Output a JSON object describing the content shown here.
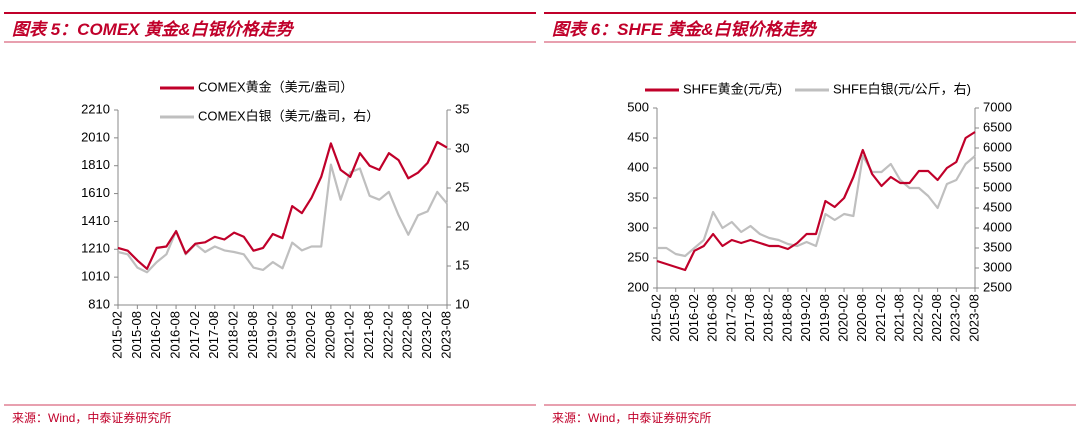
{
  "chart_data": [
    {
      "type": "line",
      "title": "图表 5：COMEX 黄金&白银价格走势",
      "source": "来源：Wind，中泰证券研究所",
      "legend": "top",
      "x": [
        "2015-02",
        null,
        "2015-08",
        null,
        "2016-02",
        null,
        "2016-08",
        null,
        "2017-02",
        null,
        "2017-08",
        null,
        "2018-02",
        null,
        "2018-08",
        null,
        "2019-02",
        null,
        "2019-08",
        null,
        "2020-02",
        null,
        "2020-08",
        null,
        "2021-02",
        null,
        "2021-08",
        null,
        "2022-02",
        null,
        "2022-08",
        null,
        "2023-02",
        null,
        "2023-08"
      ],
      "series": [
        {
          "name": "COMEX黄金（美元/盎司）",
          "color": "#c0002a",
          "values": [
            1220,
            1200,
            1130,
            1070,
            1220,
            1230,
            1340,
            1180,
            1250,
            1260,
            1300,
            1280,
            1330,
            1300,
            1200,
            1220,
            1320,
            1290,
            1520,
            1470,
            1580,
            1730,
            1970,
            1780,
            1730,
            1900,
            1810,
            1780,
            1900,
            1850,
            1720,
            1760,
            1830,
            1980,
            1940
          ]
        },
        {
          "name": "COMEX白银（美元/盎司，右）",
          "color": "#bfbfbf",
          "axis": "y2",
          "values": [
            16.8,
            16.5,
            14.8,
            14.2,
            15.5,
            16.5,
            19.5,
            16.5,
            17.8,
            16.8,
            17.5,
            17,
            16.8,
            16.5,
            14.8,
            14.5,
            15.5,
            14.7,
            18,
            17,
            17.5,
            17.5,
            28,
            23.5,
            27,
            27.5,
            24,
            23.5,
            24.5,
            21.5,
            19,
            21.5,
            22,
            24.5,
            23
          ]
        }
      ],
      "ylim": [
        810,
        2210
      ],
      "yticks": [
        810,
        1010,
        1210,
        1410,
        1610,
        1810,
        2010,
        2210
      ],
      "y2lim": [
        10,
        35
      ],
      "y2ticks": [
        10,
        15,
        20,
        25,
        30,
        35
      ]
    },
    {
      "type": "line",
      "title": "图表 6：SHFE 黄金&白银价格走势",
      "source": "来源：Wind，中泰证券研究所",
      "legend": "top",
      "x": [
        "2015-02",
        null,
        "2015-08",
        null,
        "2016-02",
        null,
        "2016-08",
        null,
        "2017-02",
        null,
        "2017-08",
        null,
        "2018-02",
        null,
        "2018-08",
        null,
        "2019-02",
        null,
        "2019-08",
        null,
        "2020-02",
        null,
        "2020-08",
        null,
        "2021-02",
        null,
        "2021-08",
        null,
        "2022-02",
        null,
        "2022-08",
        null,
        "2023-02",
        null,
        "2023-08"
      ],
      "series": [
        {
          "name": "SHFE黄金(元/克)",
          "color": "#c0002a",
          "values": [
            245,
            240,
            235,
            230,
            262,
            270,
            290,
            270,
            280,
            275,
            280,
            275,
            270,
            270,
            265,
            275,
            290,
            290,
            345,
            335,
            350,
            385,
            430,
            390,
            370,
            385,
            375,
            375,
            395,
            395,
            380,
            400,
            410,
            450,
            460
          ]
        },
        {
          "name": "SHFE白银(元/公斤，右)",
          "color": "#bfbfbf",
          "axis": "y2",
          "values": [
            3500,
            3500,
            3350,
            3300,
            3500,
            3700,
            4400,
            4000,
            4150,
            3900,
            4050,
            3850,
            3750,
            3700,
            3600,
            3550,
            3650,
            3550,
            4350,
            4200,
            4350,
            4300,
            5800,
            5400,
            5400,
            5600,
            5200,
            5000,
            5000,
            4800,
            4500,
            5100,
            5200,
            5600,
            5800
          ]
        }
      ],
      "ylim": [
        200,
        500
      ],
      "yticks": [
        200,
        250,
        300,
        350,
        400,
        450,
        500
      ],
      "y2lim": [
        2500,
        7000
      ],
      "y2ticks": [
        2500,
        3000,
        3500,
        4000,
        4500,
        5000,
        5500,
        6000,
        6500,
        7000
      ]
    }
  ]
}
